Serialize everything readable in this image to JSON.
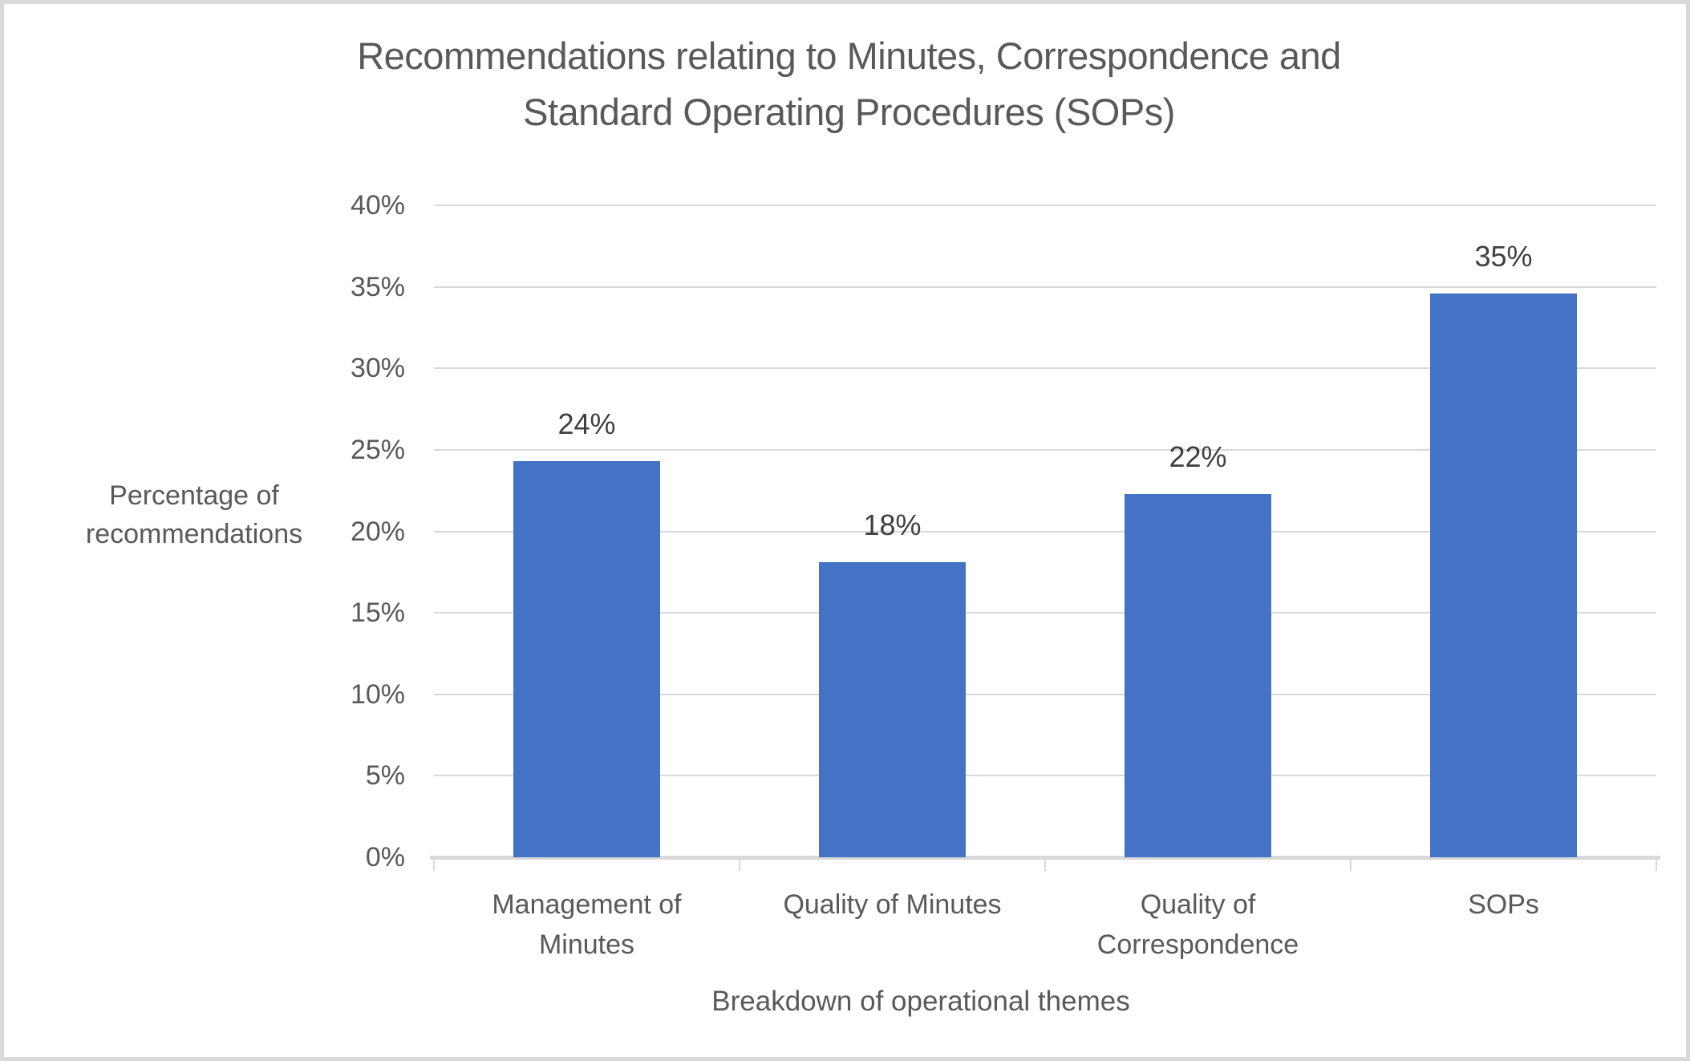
{
  "title_lines": [
    "Recommendations relating to Minutes, Correspondence and",
    "Standard Operating Procedures (SOPs)"
  ],
  "chart_data": {
    "type": "bar",
    "title": "Recommendations relating to Minutes, Correspondence and Standard Operating Procedures (SOPs)",
    "xlabel": "Breakdown of operational themes",
    "ylabel": "Percentage of recommendations",
    "categories": [
      "Management of Minutes",
      "Quality of Minutes",
      "Quality of Correspondence",
      "SOPs"
    ],
    "values": [
      24,
      18,
      22,
      35
    ],
    "plotted_values": [
      24.3,
      18.1,
      22.3,
      34.6
    ],
    "data_labels": [
      "24%",
      "18%",
      "22%",
      "35%"
    ],
    "ylim": [
      0,
      40
    ],
    "ytick_step": 5,
    "ytick_labels": [
      "0%",
      "5%",
      "10%",
      "15%",
      "20%",
      "25%",
      "30%",
      "35%",
      "40%"
    ],
    "grid": true,
    "legend": false,
    "bar_color": "#4472C4",
    "gridline_color": "#d9d9d9",
    "axis_line_color": "#d9d9d9",
    "axis_text_color": "#595959",
    "data_label_color": "#404040",
    "title_color": "#595959",
    "frame_border_color": "#d9d9d9",
    "background_color": "#ffffff"
  }
}
